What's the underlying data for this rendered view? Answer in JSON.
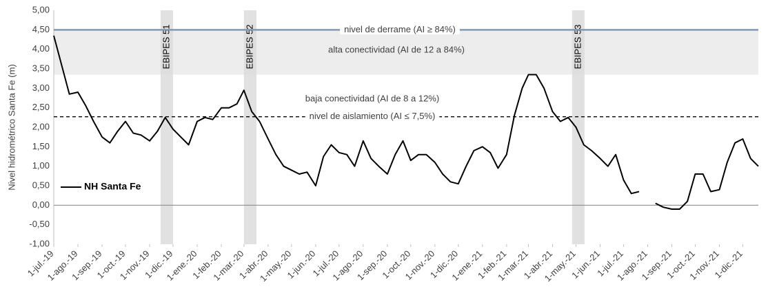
{
  "chart_data": {
    "type": "line",
    "ylabel": "Nivel hidrométrico Santa Fe (m)",
    "x": [
      "1-jul.-19",
      "11-jul.-19",
      "21-jul.-19",
      "1-ago.-19",
      "11-ago.-19",
      "21-ago.-19",
      "1-sep.-19",
      "11-sep.-19",
      "21-sep.-19",
      "1-oct.-19",
      "11-oct.-19",
      "21-oct.-19",
      "1-nov.-19",
      "11-nov.-19",
      "21-nov.-19",
      "1-dic.-19",
      "11-dic.-19",
      "21-dic.-19",
      "1-ene.-20",
      "11-ene.-20",
      "21-ene.-20",
      "1-feb.-20",
      "11-feb.-20",
      "21-feb.-20",
      "1-mar.-20",
      "11-mar.-20",
      "21-mar.-20",
      "1-abr.-20",
      "11-abr.-20",
      "21-abr.-20",
      "1-may.-20",
      "11-may.-20",
      "21-may.-20",
      "1-jun.-20",
      "11-jun.-20",
      "21-jun.-20",
      "1-jul.-20",
      "11-jul.-20",
      "21-jul.-20",
      "1-ago.-20",
      "11-ago.-20",
      "21-ago.-20",
      "1-sep.-20",
      "11-sep.-20",
      "21-sep.-20",
      "1-oct.-20",
      "11-oct.-20",
      "21-oct.-20",
      "1-nov.-20",
      "11-nov.-20",
      "21-nov.-20",
      "1-dic.-20",
      "11-dic.-20",
      "21-dic.-20",
      "1-ene.-21",
      "11-ene.-21",
      "21-ene.-21",
      "1-feb.-21",
      "11-feb.-21",
      "21-feb.-21",
      "1-mar.-21",
      "11-mar.-21",
      "21-mar.-21",
      "1-abr.-21",
      "11-abr.-21",
      "21-abr.-21",
      "1-may.-21",
      "11-may.-21",
      "21-may.-21",
      "1-jun.-21",
      "11-jun.-21",
      "21-jun.-21",
      "1-jul.-21",
      "11-jul.-21",
      "21-jul.-21",
      "1-ago.-21",
      "11-ago.-21",
      "21-ago.-21",
      "1-sep.-21",
      "11-sep.-21",
      "21-sep.-21",
      "1-oct.-21",
      "11-oct.-21",
      "21-oct.-21",
      "1-nov.-21",
      "11-nov.-21",
      "21-nov.-21",
      "1-dic.-21",
      "11-dic.-21",
      "21-dic.-21"
    ],
    "series": [
      {
        "name": "NH Santa Fe",
        "color": "#000000",
        "values": [
          4.35,
          3.6,
          2.85,
          2.9,
          2.55,
          2.15,
          1.75,
          1.6,
          1.9,
          2.15,
          1.85,
          1.8,
          1.65,
          1.9,
          2.25,
          1.95,
          1.75,
          1.55,
          2.15,
          2.25,
          2.2,
          2.5,
          2.5,
          2.6,
          2.95,
          2.4,
          2.15,
          1.7,
          1.3,
          1.0,
          0.9,
          0.8,
          0.85,
          0.5,
          1.25,
          1.55,
          1.35,
          1.3,
          1.0,
          1.65,
          1.2,
          1.0,
          0.8,
          1.3,
          1.65,
          1.15,
          1.3,
          1.3,
          1.1,
          0.8,
          0.6,
          0.55,
          1.0,
          1.4,
          1.5,
          1.35,
          0.95,
          1.3,
          2.3,
          3.0,
          3.35,
          3.35,
          3.0,
          2.4,
          2.15,
          2.25,
          2.0,
          1.55,
          1.4,
          1.2,
          1.0,
          1.3,
          0.65,
          0.3,
          0.35,
          null,
          0.05,
          -0.05,
          -0.1,
          -0.1,
          0.1,
          0.8,
          0.8,
          0.35,
          0.4,
          1.1,
          1.6,
          1.7,
          1.2,
          1.0
        ]
      }
    ],
    "xlim": [
      "1-jul.-19",
      "21-dic.-21"
    ],
    "xticks": [
      "1-jul.-19",
      "1-ago.-19",
      "1-sep.-19",
      "1-oct.-19",
      "1-nov.-19",
      "1-dic.-19",
      "1-ene.-20",
      "1-feb.-20",
      "1-mar.-20",
      "1-abr.-20",
      "1-may.-20",
      "1-jun.-20",
      "1-jul.-20",
      "1-ago.-20",
      "1-sep.-20",
      "1-oct.-20",
      "1-nov.-20",
      "1-dic.-20",
      "1-ene.-21",
      "1-feb.-21",
      "1-mar.-21",
      "1-abr.-21",
      "1-may.-21",
      "1-jun.-21",
      "1-jul.-21",
      "1-ago.-21",
      "1-sep.-21",
      "1-oct.-21",
      "1-nov.-21",
      "1-dic.-21"
    ],
    "ylim": [
      -1,
      5
    ],
    "yticks": [
      {
        "value": -1,
        "label": "-1,00"
      },
      {
        "value": -0.5,
        "label": "-0,50"
      },
      {
        "value": 0,
        "label": "0,00"
      },
      {
        "value": 0.5,
        "label": "0,50"
      },
      {
        "value": 1,
        "label": "1,00"
      },
      {
        "value": 1.5,
        "label": "1,50"
      },
      {
        "value": 2,
        "label": "2,00"
      },
      {
        "value": 2.5,
        "label": "2,50"
      },
      {
        "value": 3,
        "label": "3,00"
      },
      {
        "value": 3.5,
        "label": "3,50"
      },
      {
        "value": 4,
        "label": "4,00"
      },
      {
        "value": 4.5,
        "label": "4,50"
      },
      {
        "value": 5,
        "label": "5,00"
      }
    ],
    "band": {
      "from": 3.35,
      "to": 4.5,
      "label": "alta conectividad (AI de 12 a 84%)",
      "color": "#ededed"
    },
    "reference_lines": [
      {
        "value": 4.5,
        "label": "nivel de derrame (AI ≥ 84%)",
        "color": "#8497b0",
        "style": "solid"
      },
      {
        "value": 2.27,
        "label": "nivel de aislamiento (AI ≤ 7,5%)",
        "color": "#000000",
        "style": "dashed"
      }
    ],
    "annotation": "baja conectividad (AI de 8 a 12%)",
    "periods": [
      {
        "label": "EBIPES 51",
        "start": "15-nov.-19",
        "end": "1-dic.-19"
      },
      {
        "label": "EBIPES 52",
        "start": "1-mar.-20",
        "end": "17-mar.-20"
      },
      {
        "label": "EBIPES 53",
        "start": "26-abr.-21",
        "end": "12-may.-21"
      }
    ],
    "legend": "left"
  }
}
